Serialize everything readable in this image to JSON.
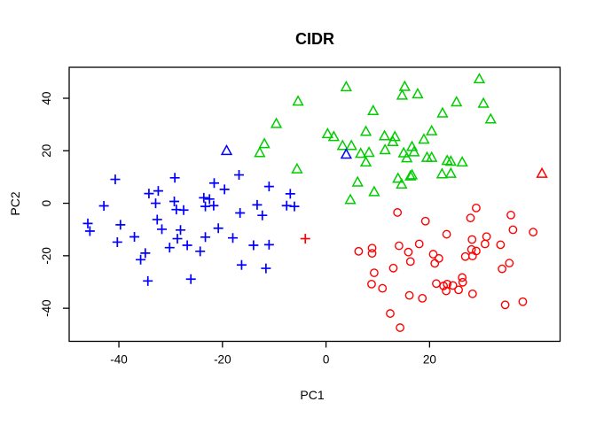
{
  "chart_data": {
    "type": "scatter",
    "title": "CIDR",
    "xlabel": "PC1",
    "ylabel": "PC2",
    "xlim": [
      -49.6,
      45.2
    ],
    "ylim": [
      -52.6,
      51.8
    ],
    "x_ticks": [
      -40,
      -20,
      0,
      20
    ],
    "y_ticks": [
      -40,
      -20,
      0,
      20,
      40
    ],
    "grid": false,
    "legend": "none",
    "colors": {
      "blue": "#0000FF",
      "green": "#00CD00",
      "red": "#FF0000"
    },
    "series": [
      {
        "name": "cluster-1-blue-plus",
        "color": "#0000FF",
        "symbol": "plus",
        "points": [
          [
            -40.7,
            9.1
          ],
          [
            -29.2,
            9.7
          ],
          [
            -16.8,
            10.8
          ],
          [
            -34.2,
            3.7
          ],
          [
            -32.4,
            4.7
          ],
          [
            -42.9,
            -1.0
          ],
          [
            -32.9,
            0.0
          ],
          [
            -29.3,
            0.7
          ],
          [
            -28.9,
            -2.4
          ],
          [
            -27.5,
            -2.6
          ],
          [
            -46.0,
            -7.7
          ],
          [
            -45.6,
            -10.6
          ],
          [
            -39.7,
            -8.2
          ],
          [
            -32.6,
            -6.2
          ],
          [
            -31.7,
            -9.9
          ],
          [
            -28.1,
            -10.2
          ],
          [
            -40.3,
            -14.8
          ],
          [
            -37.0,
            -12.8
          ],
          [
            -28.7,
            -13.5
          ],
          [
            -30.2,
            -16.9
          ],
          [
            -26.8,
            -16.0
          ],
          [
            -34.9,
            -19.0
          ],
          [
            -35.8,
            -21.5
          ],
          [
            -34.4,
            -29.6
          ],
          [
            -21.6,
            7.7
          ],
          [
            -19.6,
            5.3
          ],
          [
            -11.0,
            6.4
          ],
          [
            -6.9,
            3.6
          ],
          [
            -23.6,
            2.1
          ],
          [
            -22.5,
            1.6
          ],
          [
            -23.3,
            -1.2
          ],
          [
            -21.7,
            -0.9
          ],
          [
            -13.3,
            -0.6
          ],
          [
            -7.6,
            -0.9
          ],
          [
            -6.1,
            -1.2
          ],
          [
            -16.6,
            -3.7
          ],
          [
            -12.3,
            -4.6
          ],
          [
            -20.8,
            -9.5
          ],
          [
            -23.3,
            -12.9
          ],
          [
            -18.0,
            -13.2
          ],
          [
            -24.3,
            -18.3
          ],
          [
            -14.0,
            -16.0
          ],
          [
            -11.0,
            -15.8
          ],
          [
            -16.3,
            -23.5
          ],
          [
            -11.6,
            -24.8
          ],
          [
            -26.1,
            -28.9
          ]
        ]
      },
      {
        "name": "cluster-2-green-triangle",
        "color": "#00CD00",
        "symbol": "triangle",
        "points": [
          [
            3.9,
            44.1
          ],
          [
            -5.4,
            38.6
          ],
          [
            15.2,
            44.2
          ],
          [
            14.7,
            40.9
          ],
          [
            9.1,
            35.0
          ],
          [
            -9.6,
            30.1
          ],
          [
            0.3,
            26.2
          ],
          [
            1.5,
            25.1
          ],
          [
            7.7,
            27.1
          ],
          [
            -11.9,
            22.4
          ],
          [
            -12.8,
            19.0
          ],
          [
            3.2,
            21.7
          ],
          [
            4.9,
            21.7
          ],
          [
            6.7,
            18.7
          ],
          [
            8.3,
            19.1
          ],
          [
            11.3,
            25.4
          ],
          [
            13.3,
            25.1
          ],
          [
            12.9,
            23.2
          ],
          [
            11.4,
            20.1
          ],
          [
            15.0,
            18.9
          ],
          [
            15.6,
            17.0
          ],
          [
            7.7,
            15.4
          ],
          [
            -5.6,
            12.8
          ],
          [
            6.1,
            7.8
          ],
          [
            13.9,
            9.2
          ],
          [
            14.6,
            7.0
          ],
          [
            16.3,
            10.1
          ],
          [
            9.3,
            4.1
          ],
          [
            4.7,
            1.1
          ],
          [
            29.6,
            47.1
          ],
          [
            17.7,
            41.4
          ],
          [
            25.2,
            38.3
          ],
          [
            30.4,
            37.8
          ],
          [
            22.5,
            34.1
          ],
          [
            31.8,
            31.8
          ],
          [
            20.4,
            27.3
          ],
          [
            18.9,
            24.1
          ],
          [
            16.6,
            21.3
          ],
          [
            17.0,
            19.3
          ],
          [
            19.5,
            17.2
          ],
          [
            20.4,
            17.2
          ],
          [
            23.4,
            16.0
          ],
          [
            24.1,
            15.7
          ],
          [
            26.3,
            15.4
          ],
          [
            22.4,
            10.9
          ],
          [
            24.1,
            11.1
          ],
          [
            16.6,
            10.5
          ]
        ]
      },
      {
        "name": "cluster-3-red-circle",
        "color": "#FF0000",
        "symbol": "circle",
        "points": [
          [
            13.8,
            -3.5
          ],
          [
            19.2,
            -6.8
          ],
          [
            29.0,
            -1.8
          ],
          [
            27.9,
            -5.6
          ],
          [
            35.7,
            -4.5
          ],
          [
            36.1,
            -10.1
          ],
          [
            40.0,
            -11.0
          ],
          [
            23.3,
            -11.8
          ],
          [
            28.2,
            -13.8
          ],
          [
            31.0,
            -12.7
          ],
          [
            30.7,
            -15.5
          ],
          [
            33.7,
            -15.8
          ],
          [
            18.0,
            -15.5
          ],
          [
            14.1,
            -16.2
          ],
          [
            8.9,
            -17.1
          ],
          [
            6.3,
            -18.3
          ],
          [
            8.9,
            -19.1
          ],
          [
            15.9,
            -18.6
          ],
          [
            20.7,
            -19.4
          ],
          [
            16.3,
            -22.2
          ],
          [
            21.0,
            -22.9
          ],
          [
            26.9,
            -20.3
          ],
          [
            28.1,
            -17.6
          ],
          [
            29.0,
            -18.2
          ],
          [
            28.3,
            -20.1
          ],
          [
            21.8,
            -21.0
          ],
          [
            35.4,
            -22.8
          ],
          [
            34.0,
            -25.0
          ],
          [
            13.0,
            -24.7
          ],
          [
            9.3,
            -26.5
          ],
          [
            8.8,
            -30.8
          ],
          [
            10.9,
            -32.4
          ],
          [
            21.3,
            -30.6
          ],
          [
            22.7,
            -31.5
          ],
          [
            23.4,
            -30.8
          ],
          [
            24.5,
            -31.3
          ],
          [
            23.2,
            -33.4
          ],
          [
            25.6,
            -33.0
          ],
          [
            26.3,
            -28.3
          ],
          [
            26.4,
            -30.1
          ],
          [
            28.3,
            -34.5
          ],
          [
            34.6,
            -38.7
          ],
          [
            38.0,
            -37.5
          ],
          [
            16.1,
            -35.1
          ],
          [
            18.6,
            -36.2
          ],
          [
            12.4,
            -42.0
          ],
          [
            14.3,
            -47.4
          ]
        ]
      },
      {
        "name": "blue-triangle-outliers",
        "color": "#0000FF",
        "symbol": "triangle",
        "points": [
          [
            -19.2,
            19.8
          ],
          [
            3.9,
            18.4
          ]
        ]
      },
      {
        "name": "red-plus-outlier",
        "color": "#FF0000",
        "symbol": "plus",
        "points": [
          [
            -4.0,
            -13.5
          ]
        ]
      },
      {
        "name": "red-triangle-outlier",
        "color": "#FF0000",
        "symbol": "triangle",
        "points": [
          [
            41.7,
            11.1
          ]
        ]
      }
    ]
  }
}
